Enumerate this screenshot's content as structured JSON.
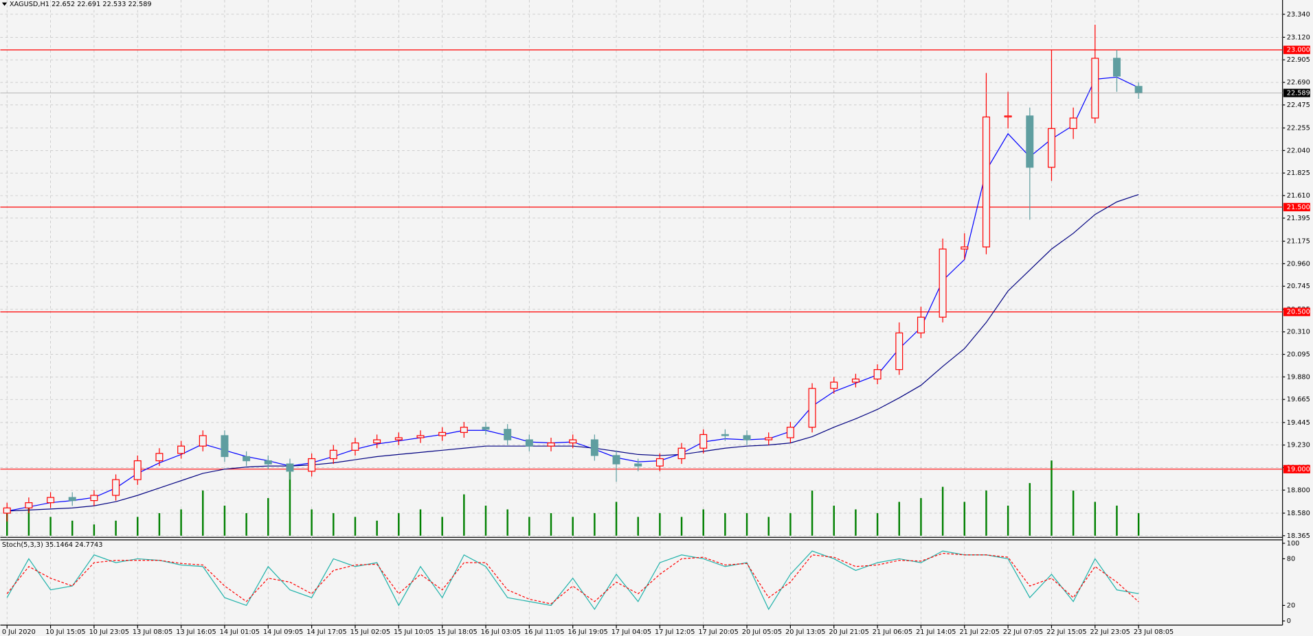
{
  "chart_data": {
    "type": "candlestick",
    "title": "XAGUSD,H1  22.652 22.691 22.533 22.589",
    "categories": [
      "0 Jul 2020",
      null,
      "10 Jul 15:05",
      null,
      "10 Jul 23:05",
      null,
      "13 Jul 08:05",
      null,
      "13 Jul 16:05",
      null,
      "14 Jul 01:05",
      null,
      "14 Jul 09:05",
      null,
      "14 Jul 17:05",
      null,
      "15 Jul 02:05",
      null,
      "15 Jul 10:05",
      null,
      "15 Jul 18:05",
      null,
      "16 Jul 03:05",
      null,
      "16 Jul 11:05",
      null,
      "16 Jul 19:05",
      null,
      "17 Jul 04:05",
      null,
      "17 Jul 12:05",
      null,
      "17 Jul 20:05",
      null,
      "20 Jul 05:05",
      null,
      "20 Jul 13:05",
      null,
      "20 Jul 21:05",
      null,
      "21 Jul 06:05",
      null,
      "21 Jul 14:05",
      null,
      "21 Jul 22:05",
      null,
      "22 Jul 07:05",
      null,
      "22 Jul 15:05",
      null,
      "22 Jul 23:05",
      null,
      "23 Jul 08:05"
    ],
    "open": [
      18.58,
      18.63,
      18.68,
      18.73,
      18.7,
      18.75,
      18.9,
      19.08,
      19.15,
      19.22,
      19.32,
      19.12,
      19.08,
      19.05,
      18.98,
      19.1,
      19.18,
      19.25,
      19.28,
      19.3,
      19.32,
      19.35,
      19.4,
      19.38,
      19.28,
      19.22,
      19.25,
      19.28,
      19.13,
      19.05,
      19.03,
      19.1,
      19.2,
      19.33,
      19.32,
      19.28,
      19.3,
      19.4,
      19.77,
      19.83,
      19.86,
      19.95,
      20.3,
      20.45,
      21.1,
      21.12,
      22.36,
      22.37,
      21.88,
      22.25,
      22.35,
      22.92,
      22.652
    ],
    "high": [
      18.68,
      18.73,
      18.78,
      18.78,
      18.8,
      18.95,
      19.13,
      19.2,
      19.27,
      19.37,
      19.37,
      19.17,
      19.13,
      19.1,
      19.15,
      19.23,
      19.3,
      19.33,
      19.35,
      19.37,
      19.4,
      19.45,
      19.45,
      19.43,
      19.33,
      19.3,
      19.33,
      19.33,
      19.18,
      19.1,
      19.15,
      19.25,
      19.38,
      19.38,
      19.37,
      19.35,
      19.45,
      19.82,
      19.88,
      19.91,
      20.0,
      20.4,
      20.55,
      21.2,
      21.25,
      22.78,
      22.6,
      22.45,
      23.0,
      22.45,
      23.24,
      23.0,
      22.691
    ],
    "low": [
      18.5,
      18.58,
      18.63,
      18.65,
      18.65,
      18.7,
      18.85,
      19.03,
      19.1,
      19.17,
      19.07,
      19.03,
      19.0,
      18.9,
      18.93,
      19.05,
      19.13,
      19.2,
      19.23,
      19.25,
      19.27,
      19.3,
      19.33,
      19.23,
      19.17,
      19.17,
      19.2,
      19.08,
      18.88,
      18.98,
      18.98,
      19.05,
      19.15,
      19.27,
      19.23,
      19.23,
      19.25,
      19.35,
      19.72,
      19.78,
      19.81,
      19.9,
      20.25,
      20.4,
      21.0,
      21.05,
      22.25,
      21.38,
      21.75,
      22.15,
      22.3,
      22.6,
      22.533
    ],
    "close": [
      18.63,
      18.68,
      18.73,
      18.7,
      18.75,
      18.9,
      19.08,
      19.15,
      19.22,
      19.32,
      19.12,
      19.08,
      19.05,
      18.98,
      19.1,
      19.18,
      19.25,
      19.28,
      19.3,
      19.32,
      19.35,
      19.4,
      19.38,
      19.28,
      19.22,
      19.25,
      19.28,
      19.13,
      19.05,
      19.03,
      19.1,
      19.2,
      19.33,
      19.32,
      19.28,
      19.3,
      19.4,
      19.77,
      19.83,
      19.86,
      19.95,
      20.3,
      20.45,
      21.1,
      21.12,
      22.36,
      22.37,
      21.88,
      22.25,
      22.35,
      22.92,
      22.75,
      22.589
    ],
    "up_color": "#ff0000",
    "down_color": "#5f9ea0",
    "moving_averages": [
      {
        "color": "#0000ff",
        "values": [
          18.6,
          18.64,
          18.68,
          18.7,
          18.73,
          18.82,
          18.96,
          19.06,
          19.14,
          19.24,
          19.18,
          19.12,
          19.08,
          19.03,
          19.06,
          19.12,
          19.19,
          19.24,
          19.27,
          19.3,
          19.33,
          19.37,
          19.37,
          19.32,
          19.26,
          19.25,
          19.26,
          19.19,
          19.11,
          19.07,
          19.08,
          19.15,
          19.26,
          19.29,
          19.28,
          19.29,
          19.36,
          19.6,
          19.74,
          19.82,
          19.9,
          20.15,
          20.35,
          20.8,
          21.0,
          21.85,
          22.2,
          21.98,
          22.15,
          22.28,
          22.72,
          22.74,
          22.64
        ]
      },
      {
        "color": "#000080",
        "values": [
          18.6,
          18.61,
          18.62,
          18.63,
          18.65,
          18.69,
          18.75,
          18.82,
          18.89,
          18.96,
          19.0,
          19.02,
          19.03,
          19.03,
          19.04,
          19.06,
          19.09,
          19.12,
          19.14,
          19.16,
          19.18,
          19.2,
          19.22,
          19.22,
          19.22,
          19.22,
          19.22,
          19.2,
          19.17,
          19.14,
          19.13,
          19.14,
          19.17,
          19.2,
          19.22,
          19.23,
          19.25,
          19.31,
          19.4,
          19.48,
          19.57,
          19.68,
          19.8,
          19.98,
          20.15,
          20.4,
          20.7,
          20.9,
          21.1,
          21.25,
          21.43,
          21.55,
          21.62
        ]
      }
    ],
    "volume": {
      "color": "#008000",
      "values": [
        30,
        40,
        25,
        20,
        15,
        20,
        25,
        30,
        35,
        60,
        40,
        30,
        50,
        85,
        35,
        30,
        25,
        20,
        30,
        35,
        25,
        55,
        40,
        35,
        25,
        30,
        25,
        30,
        45,
        25,
        30,
        25,
        35,
        30,
        30,
        25,
        30,
        60,
        40,
        35,
        30,
        45,
        50,
        65,
        45,
        60,
        40,
        70,
        100,
        60,
        45,
        40,
        30
      ]
    },
    "ylim": [
      18.349,
      23.476
    ],
    "yticks": [
      {
        "value": 23.34,
        "label": "23.340"
      },
      {
        "value": 23.12,
        "label": "23.120"
      },
      {
        "value": 22.905,
        "label": "22.905"
      },
      {
        "value": 22.69,
        "label": "22.690"
      },
      {
        "value": 22.475,
        "label": "22.475"
      },
      {
        "value": 22.255,
        "label": "22.255"
      },
      {
        "value": 22.04,
        "label": "22.040"
      },
      {
        "value": 21.825,
        "label": "21.825"
      },
      {
        "value": 21.61,
        "label": "21.610"
      },
      {
        "value": 21.395,
        "label": "21.395"
      },
      {
        "value": 21.175,
        "label": "21.175"
      },
      {
        "value": 20.96,
        "label": "20.960"
      },
      {
        "value": 20.745,
        "label": "20.745"
      },
      {
        "value": 20.525,
        "label": "20.525"
      },
      {
        "value": 20.31,
        "label": "20.310"
      },
      {
        "value": 20.095,
        "label": "20.095"
      },
      {
        "value": 19.88,
        "label": "19.880"
      },
      {
        "value": 19.665,
        "label": "19.665"
      },
      {
        "value": 19.445,
        "label": "19.445"
      },
      {
        "value": 19.23,
        "label": "19.230"
      },
      {
        "value": 19.015,
        "label": "19.015"
      },
      {
        "value": 18.8,
        "label": "18.800"
      },
      {
        "value": 18.58,
        "label": "18.580"
      },
      {
        "value": 18.365,
        "label": "18.365"
      }
    ],
    "grid": true,
    "levels": [
      {
        "value": 23.0,
        "label": "23.000"
      },
      {
        "value": 21.5,
        "label": "21.500"
      },
      {
        "value": 20.5,
        "label": "20.500"
      },
      {
        "value": 19.0,
        "label": "19.000"
      }
    ],
    "level_color": "#ff0000",
    "current_price": {
      "value": 22.589,
      "label": "22.589"
    },
    "stochastic": {
      "title": "Stoch(5,3,3) 35.1464 24.7743",
      "main": {
        "color": "#20b2aa",
        "values": [
          30,
          80,
          40,
          45,
          85,
          75,
          80,
          78,
          72,
          70,
          30,
          20,
          70,
          40,
          30,
          80,
          70,
          75,
          20,
          70,
          30,
          85,
          70,
          30,
          25,
          20,
          55,
          15,
          60,
          25,
          75,
          85,
          80,
          70,
          75,
          15,
          60,
          90,
          80,
          65,
          75,
          80,
          75,
          90,
          85,
          85,
          80,
          30,
          60,
          25,
          80,
          40,
          35.1464
        ]
      },
      "signal": {
        "color": "#ff0000",
        "values": [
          35,
          70,
          55,
          45,
          75,
          78,
          78,
          78,
          74,
          72,
          45,
          25,
          55,
          50,
          35,
          65,
          72,
          73,
          35,
          60,
          40,
          75,
          75,
          40,
          28,
          22,
          45,
          25,
          50,
          35,
          60,
          80,
          82,
          72,
          74,
          30,
          50,
          85,
          82,
          70,
          72,
          78,
          77,
          87,
          85,
          85,
          82,
          45,
          55,
          30,
          70,
          50,
          24.7743
        ]
      },
      "ylim": [
        0,
        100
      ],
      "yticks": [
        0,
        20,
        80,
        100
      ]
    }
  }
}
